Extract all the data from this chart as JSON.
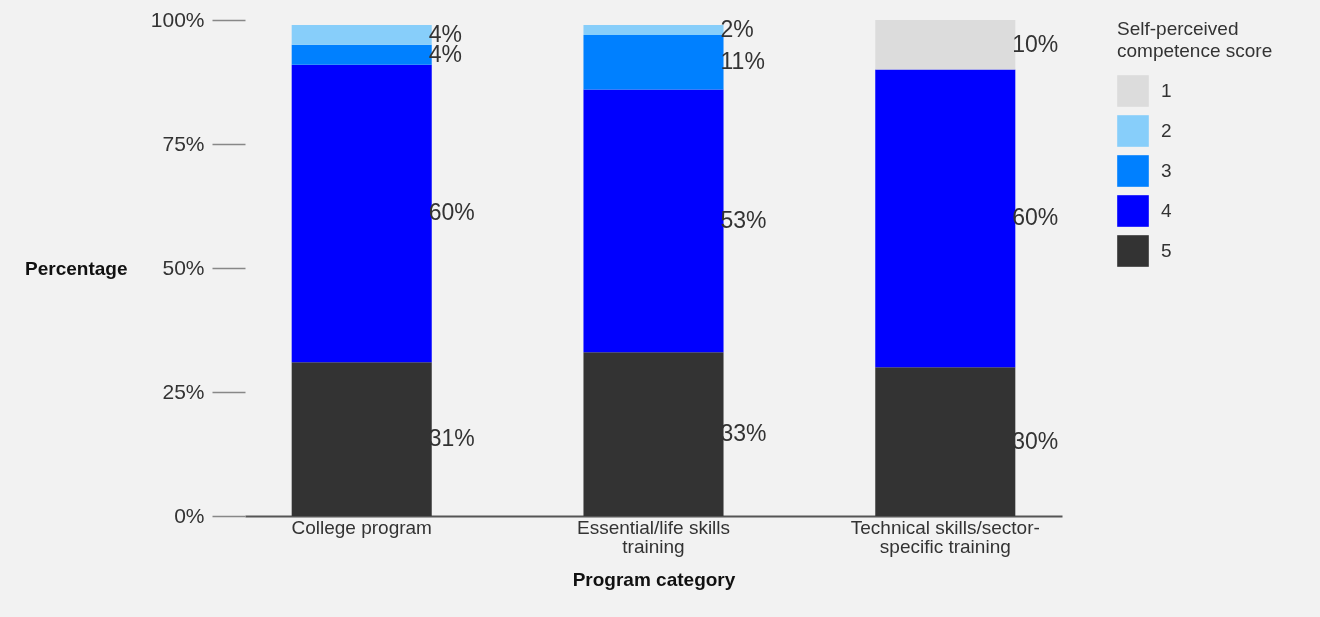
{
  "chart_data": {
    "type": "bar",
    "stacked": true,
    "xlabel": "Program category",
    "ylabel": "Percentage",
    "legend_title": "Self-perceived competence score",
    "legend": "top right",
    "grid": false,
    "categories": [
      "College program",
      "Essential/life skills training",
      "Technical skills/sector-specific training"
    ],
    "ylim": [
      0,
      100
    ],
    "yticks": [
      {
        "value": 0,
        "label": "0%"
      },
      {
        "value": 25,
        "label": "25%"
      },
      {
        "value": 50,
        "label": "50%"
      },
      {
        "value": 75,
        "label": "75%"
      },
      {
        "value": 100,
        "label": "100%"
      }
    ],
    "series": [
      {
        "name": "5",
        "color": "#333333",
        "values": [
          31,
          33,
          30
        ],
        "value_labels": [
          "31%",
          "33%",
          "30%"
        ]
      },
      {
        "name": "4",
        "color": "#0000ff",
        "values": [
          60,
          53,
          60
        ],
        "value_labels": [
          "60%",
          "53%",
          "60%"
        ]
      },
      {
        "name": "3",
        "color": "#0080ff",
        "values": [
          4,
          11,
          null
        ],
        "value_labels": [
          "4%",
          "11%",
          null
        ]
      },
      {
        "name": "2",
        "color": "#87cefa",
        "values": [
          4,
          2,
          null
        ],
        "value_labels": [
          "4%",
          "2%",
          null
        ]
      },
      {
        "name": "1",
        "color": "#dcdcdc",
        "values": [
          null,
          null,
          10
        ],
        "value_labels": [
          null,
          null,
          "10%"
        ]
      }
    ]
  }
}
